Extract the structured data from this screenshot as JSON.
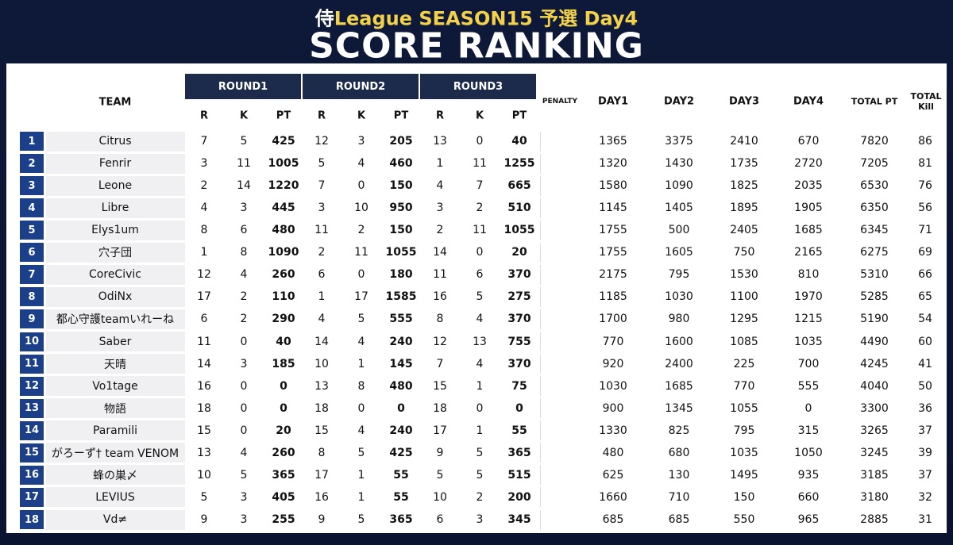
{
  "header": {
    "mark": "侍",
    "subtitle": "League SEASON15 予選 Day4",
    "title": "SCORE RANKING"
  },
  "table": {
    "columns": {
      "team": "TEAM",
      "rounds": [
        "ROUND1",
        "ROUND2",
        "ROUND3"
      ],
      "round_sub": [
        "R",
        "K",
        "PT"
      ],
      "penalty": "PENALTY",
      "days": [
        "DAY1",
        "DAY2",
        "DAY3",
        "DAY4"
      ],
      "total_pt": "TOTAL PT",
      "total_kill": "TOTAL Kill"
    },
    "rows": [
      [
        1,
        "Citrus",
        7,
        5,
        425,
        12,
        3,
        205,
        13,
        0,
        40,
        1365,
        3375,
        2410,
        670,
        7820,
        86
      ],
      [
        2,
        "Fenrir",
        3,
        11,
        1005,
        5,
        4,
        460,
        1,
        11,
        1255,
        1320,
        1430,
        1735,
        2720,
        7205,
        81
      ],
      [
        3,
        "Leone",
        2,
        14,
        1220,
        7,
        0,
        150,
        4,
        7,
        665,
        1580,
        1090,
        1825,
        2035,
        6530,
        76
      ],
      [
        4,
        "Libre",
        4,
        3,
        445,
        3,
        10,
        950,
        3,
        2,
        510,
        1145,
        1405,
        1895,
        1905,
        6350,
        56
      ],
      [
        5,
        "Elys1um",
        8,
        6,
        480,
        11,
        2,
        150,
        2,
        11,
        1055,
        1755,
        500,
        2405,
        1685,
        6345,
        71
      ],
      [
        6,
        "穴子団",
        1,
        8,
        1090,
        2,
        11,
        1055,
        14,
        0,
        20,
        1755,
        1605,
        750,
        2165,
        6275,
        69
      ],
      [
        7,
        "CoreCivic",
        12,
        4,
        260,
        6,
        0,
        180,
        11,
        6,
        370,
        2175,
        795,
        1530,
        810,
        5310,
        66
      ],
      [
        8,
        "OdiNx",
        17,
        2,
        110,
        1,
        17,
        1585,
        16,
        5,
        275,
        1185,
        1030,
        1100,
        1970,
        5285,
        65
      ],
      [
        9,
        "都心守護teamいれーね",
        6,
        2,
        290,
        4,
        5,
        555,
        8,
        4,
        370,
        1700,
        980,
        1295,
        1215,
        5190,
        54
      ],
      [
        10,
        "Saber",
        11,
        0,
        40,
        14,
        4,
        240,
        12,
        13,
        755,
        770,
        1600,
        1085,
        1035,
        4490,
        60
      ],
      [
        11,
        "天晴",
        14,
        3,
        185,
        10,
        1,
        145,
        7,
        4,
        370,
        920,
        2400,
        225,
        700,
        4245,
        41
      ],
      [
        12,
        "Vo1tage",
        16,
        0,
        0,
        13,
        8,
        480,
        15,
        1,
        75,
        1030,
        1685,
        770,
        555,
        4040,
        50
      ],
      [
        13,
        "物語",
        18,
        0,
        0,
        18,
        0,
        0,
        18,
        0,
        0,
        900,
        1345,
        1055,
        0,
        3300,
        36
      ],
      [
        14,
        "Paramili",
        15,
        0,
        20,
        15,
        4,
        240,
        17,
        1,
        55,
        1330,
        825,
        795,
        315,
        3265,
        37
      ],
      [
        15,
        "がろーず† team VENOM",
        13,
        4,
        260,
        8,
        5,
        425,
        9,
        5,
        365,
        480,
        680,
        1035,
        1050,
        3245,
        39
      ],
      [
        16,
        "蜂の巣〆",
        10,
        5,
        365,
        17,
        1,
        55,
        5,
        5,
        515,
        625,
        130,
        1495,
        935,
        3185,
        37
      ],
      [
        17,
        "LEVIUS",
        5,
        3,
        405,
        16,
        1,
        55,
        10,
        2,
        200,
        1660,
        710,
        150,
        660,
        3180,
        32
      ],
      [
        18,
        "Vd≠",
        9,
        3,
        255,
        9,
        5,
        365,
        6,
        3,
        345,
        685,
        685,
        550,
        965,
        2885,
        31
      ]
    ]
  }
}
